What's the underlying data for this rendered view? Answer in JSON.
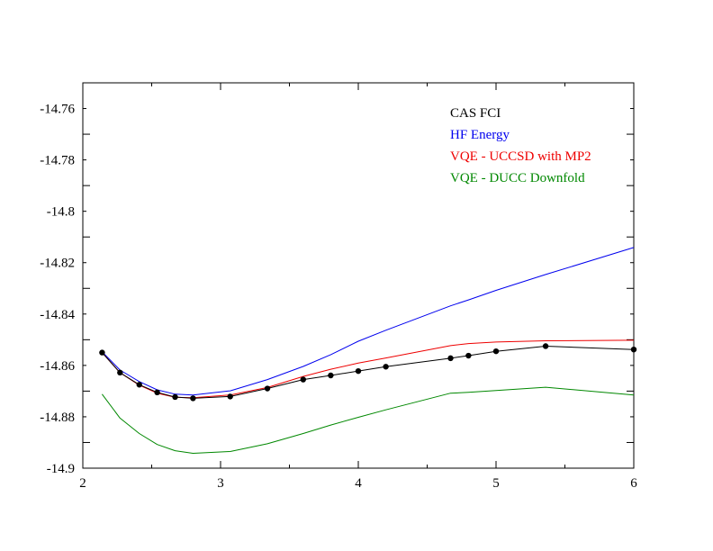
{
  "chart_data": {
    "type": "line",
    "title": "",
    "xlabel": "",
    "ylabel": "",
    "xlim": [
      2,
      6
    ],
    "ylim": [
      -14.9,
      -14.75
    ],
    "xticks": [
      "2",
      "3",
      "4",
      "5",
      "6"
    ],
    "yticks": [
      "-14.76",
      "-14.78",
      "-14.8",
      "-14.82",
      "-14.84",
      "-14.86",
      "-14.88",
      "-14.9"
    ],
    "ytick_values": [
      -14.76,
      -14.78,
      -14.8,
      -14.82,
      -14.84,
      -14.86,
      -14.88,
      -14.9
    ],
    "grid": false,
    "legend_position": "top-right",
    "series": [
      {
        "name": "CAS FCI",
        "color": "#000000",
        "markers": true,
        "x": [
          2.14,
          2.27,
          2.41,
          2.54,
          2.67,
          2.8,
          3.07,
          3.34,
          3.6,
          3.8,
          4.0,
          4.2,
          4.67,
          4.8,
          5.0,
          5.36,
          6.0
        ],
        "y": [
          -14.855,
          -14.8628,
          -14.8675,
          -14.8705,
          -14.8723,
          -14.8728,
          -14.8721,
          -14.869,
          -14.8655,
          -14.8639,
          -14.8622,
          -14.8605,
          -14.8572,
          -14.8562,
          -14.8545,
          -14.8525,
          -14.8538
        ]
      },
      {
        "name": "HF Energy",
        "color": "#0000ee",
        "markers": false,
        "x": [
          2.14,
          2.27,
          2.41,
          2.54,
          2.67,
          2.8,
          3.07,
          3.34,
          3.6,
          3.8,
          4.0,
          4.2,
          4.67,
          4.8,
          5.0,
          5.36,
          6.0
        ],
        "y": [
          -14.8547,
          -14.8618,
          -14.8663,
          -14.8695,
          -14.8712,
          -14.8715,
          -14.8699,
          -14.8655,
          -14.8604,
          -14.8558,
          -14.8506,
          -14.8463,
          -14.8368,
          -14.8345,
          -14.8308,
          -14.8246,
          -14.8141
        ]
      },
      {
        "name": "VQE - UCCSD with MP2",
        "color": "#ee0000",
        "markers": false,
        "x": [
          2.14,
          2.27,
          2.41,
          2.54,
          2.67,
          2.8,
          3.07,
          3.34,
          3.6,
          3.8,
          4.0,
          4.2,
          4.67,
          4.8,
          5.0,
          5.36,
          6.0
        ],
        "y": [
          -14.855,
          -14.8628,
          -14.8677,
          -14.8708,
          -14.8724,
          -14.8726,
          -14.8715,
          -14.8686,
          -14.8643,
          -14.8615,
          -14.8591,
          -14.8571,
          -14.8523,
          -14.8515,
          -14.8509,
          -14.8504,
          -14.8502
        ]
      },
      {
        "name": "VQE - DUCC Downfold",
        "color": "#008800",
        "markers": false,
        "x": [
          2.14,
          2.27,
          2.41,
          2.54,
          2.67,
          2.8,
          3.07,
          3.34,
          3.6,
          3.8,
          4.0,
          4.2,
          4.67,
          4.8,
          5.0,
          5.36,
          6.0
        ],
        "y": [
          -14.8712,
          -14.8805,
          -14.8865,
          -14.8908,
          -14.8932,
          -14.8942,
          -14.8935,
          -14.8905,
          -14.8865,
          -14.8832,
          -14.8802,
          -14.8773,
          -14.8708,
          -14.8705,
          -14.8698,
          -14.8685,
          -14.8715
        ]
      }
    ]
  }
}
